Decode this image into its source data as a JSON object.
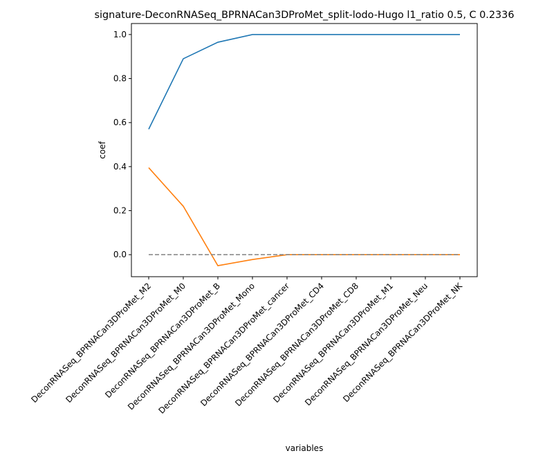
{
  "chart_data": {
    "type": "line",
    "title": "signature-DeconRNASeq_BPRNACan3DProMet_split-lodo-Hugo l1_ratio 0.5, C 0.2336",
    "xlabel": "variables",
    "ylabel": "coef",
    "categories": [
      "DeconRNASeq_BPRNACan3DProMet_M2",
      "DeconRNASeq_BPRNACan3DProMet_M0",
      "DeconRNASeq_BPRNACan3DProMet_B",
      "DeconRNASeq_BPRNACan3DProMet_Mono",
      "DeconRNASeq_BPRNACan3DProMet_cancer",
      "DeconRNASeq_BPRNACan3DProMet_CD4",
      "DeconRNASeq_BPRNACan3DProMet_CD8",
      "DeconRNASeq_BPRNACan3DProMet_M1",
      "DeconRNASeq_BPRNACan3DProMet_Neu",
      "DeconRNASeq_BPRNACan3DProMet_NK"
    ],
    "series": [
      {
        "values": [
          0.57,
          0.89,
          0.965,
          1.0,
          1.0,
          1.0,
          1.0,
          1.0,
          1.0,
          1.0
        ],
        "color": "#1f77b4",
        "style": "solid"
      },
      {
        "values": [
          0.395,
          0.22,
          -0.05,
          -0.022,
          0.0,
          0.0,
          0.0,
          0.0,
          0.0,
          0.0
        ],
        "color": "#ff7f0e",
        "style": "solid"
      },
      {
        "values": [
          0.0,
          0.0,
          0.0,
          0.0,
          0.0,
          0.0,
          0.0,
          0.0,
          0.0,
          0.0
        ],
        "color": "#808080",
        "style": "dashed"
      }
    ],
    "yticks": [
      0.0,
      0.2,
      0.4,
      0.6,
      0.8,
      1.0
    ],
    "ytick_labels": [
      "0.0",
      "0.2",
      "0.4",
      "0.6",
      "0.8",
      "1.0"
    ],
    "ylim": [
      -0.1,
      1.05
    ],
    "grid": false
  }
}
